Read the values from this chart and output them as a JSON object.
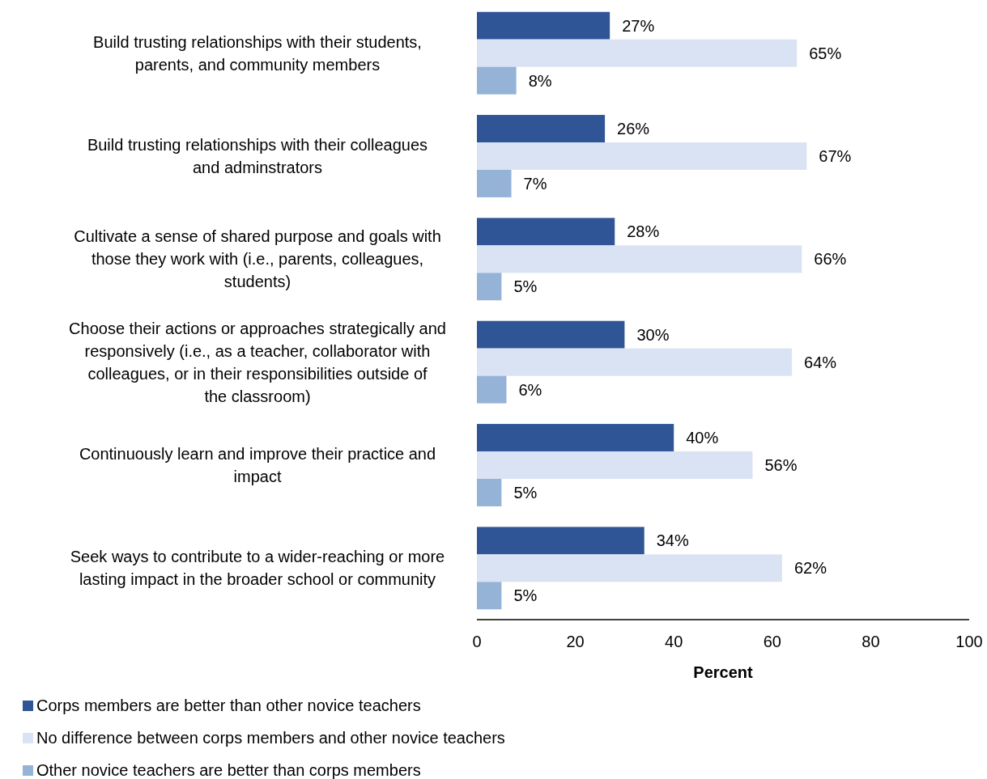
{
  "chart_data": {
    "type": "bar",
    "orientation": "horizontal",
    "xlabel": "Percent",
    "categories": [
      "Build trusting relationships with their students, parents, and community members",
      "Build trusting relationships with their colleagues and adminstrators",
      "Cultivate a sense of shared purpose and goals with those they work with (i.e., parents, colleagues, students)",
      "Choose their actions or approaches strategically and responsively (i.e., as a teacher, collaborator with colleagues, or in their responsibilities outside of the classroom)",
      "Continuously learn and improve their practice and impact",
      "Seek ways to contribute to a wider-reaching or more lasting impact in the broader school or community"
    ],
    "series": [
      {
        "name": "Corps members are better than other novice teachers",
        "color": "#2f5597",
        "values": [
          27,
          26,
          28,
          30,
          40,
          34
        ],
        "value_labels": [
          "27%",
          "26%",
          "28%",
          "30%",
          "40%",
          "34%"
        ]
      },
      {
        "name": "No difference between corps members and other novice teachers",
        "color": "#dae3f3",
        "values": [
          65,
          67,
          66,
          64,
          56,
          62
        ],
        "value_labels": [
          "65%",
          "67%",
          "66%",
          "64%",
          "56%",
          "62%"
        ]
      },
      {
        "name": "Other novice teachers are better than corps members",
        "color": "#95b3d7",
        "values": [
          8,
          7,
          5,
          6,
          5,
          5
        ],
        "value_labels": [
          "8%",
          "7%",
          "5%",
          "6%",
          "5%",
          "5%"
        ]
      }
    ],
    "xlim": [
      0,
      100
    ],
    "xticks": [
      0,
      20,
      40,
      60,
      80,
      100
    ],
    "grid": false,
    "legend": "bottom"
  }
}
